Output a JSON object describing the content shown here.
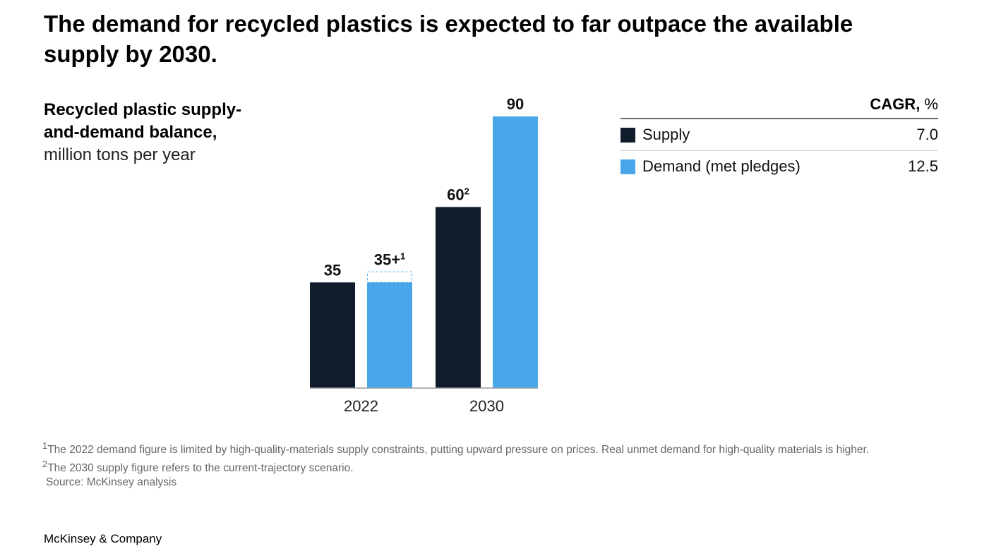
{
  "title": "The demand for recycled plastics is expected to far outpace the available supply by 2030.",
  "subtitle": {
    "bold": "Recycled plastic supply-and-demand balance,",
    "unit": "million tons per year"
  },
  "legend": {
    "header_bold": "CAGR,",
    "header_unit": " %",
    "items": [
      {
        "label": "Supply",
        "value": "7.0",
        "color": "#0f1c2c"
      },
      {
        "label": "Demand (met pledges)",
        "value": "12.5",
        "color": "#4aa6ea"
      }
    ]
  },
  "chart_data": {
    "type": "bar",
    "title": "Recycled plastic supply-and-demand balance, million tons per year",
    "categories": [
      "2022",
      "2030"
    ],
    "series": [
      {
        "name": "Supply",
        "values": [
          35,
          60
        ],
        "labels": [
          "35",
          "60"
        ],
        "superscripts": [
          "",
          "2"
        ],
        "color": "#0f1c2c"
      },
      {
        "name": "Demand (met pledges)",
        "values": [
          35,
          90
        ],
        "labels": [
          "35+",
          "90"
        ],
        "superscripts": [
          "1",
          ""
        ],
        "color": "#4aa6ea"
      }
    ],
    "dashed_extension": {
      "series": "Demand (met pledges)",
      "category": "2022",
      "value": 38.5
    },
    "ylim": [
      0,
      90
    ],
    "xlabel": "",
    "ylabel": ""
  },
  "footnotes": [
    {
      "mark": "1",
      "text": "The 2022 demand figure is limited by high-quality-materials supply constraints, putting upward pressure on prices. Real unmet demand for high-quality materials is higher."
    },
    {
      "mark": "2",
      "text": "The 2030 supply figure refers to the current-trajectory scenario."
    },
    {
      "mark": "",
      "text": "Source: McKinsey analysis"
    }
  ],
  "brand": "McKinsey & Company"
}
